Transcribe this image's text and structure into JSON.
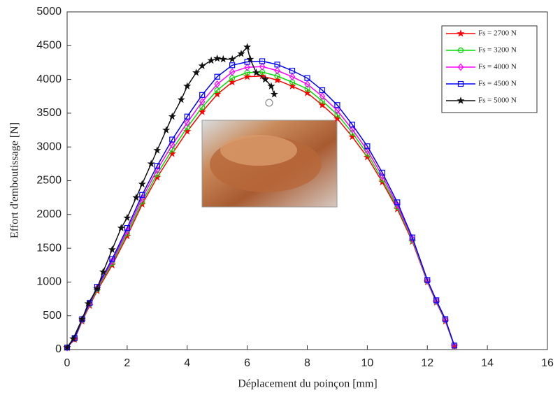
{
  "chart_data": {
    "type": "line",
    "xlabel": "Déplacement du poinçon [mm]",
    "ylabel": "Effort d'emboutissage [N]",
    "xlim": [
      0,
      16
    ],
    "xticks": [
      0,
      2,
      4,
      6,
      8,
      10,
      12,
      14,
      16
    ],
    "ylim": [
      0,
      5000
    ],
    "yticks": [
      0,
      500,
      1000,
      1500,
      2000,
      2500,
      3000,
      3500,
      4000,
      4500,
      5000
    ],
    "legend": "upper right",
    "series": [
      {
        "name": "Fs = 2700 N",
        "color": "#ff0000",
        "marker": "star",
        "x": [
          0,
          0.25,
          0.5,
          0.75,
          1,
          1.5,
          2,
          2.5,
          3,
          3.5,
          4,
          4.5,
          5,
          5.5,
          6,
          6.5,
          7,
          7.5,
          8,
          8.5,
          9,
          9.5,
          10,
          10.5,
          11,
          11.5,
          12,
          12.3,
          12.6,
          12.9
        ],
        "values": [
          30,
          150,
          420,
          650,
          870,
          1250,
          1680,
          2150,
          2550,
          2900,
          3230,
          3520,
          3780,
          3960,
          4040,
          4050,
          3990,
          3900,
          3800,
          3620,
          3420,
          3150,
          2850,
          2480,
          2080,
          1600,
          1000,
          700,
          420,
          50
        ]
      },
      {
        "name": "Fs = 3200 N",
        "color": "#00dd00",
        "marker": "circle",
        "x": [
          0,
          0.25,
          0.5,
          0.75,
          1,
          1.5,
          2,
          2.5,
          3,
          3.5,
          4,
          4.5,
          5,
          5.5,
          6,
          6.5,
          7,
          7.5,
          8,
          8.5,
          9,
          9.5,
          10,
          10.5,
          11,
          11.5,
          12,
          12.3,
          12.6,
          12.9
        ],
        "values": [
          30,
          160,
          430,
          670,
          890,
          1280,
          1720,
          2190,
          2600,
          2960,
          3290,
          3590,
          3840,
          4020,
          4100,
          4110,
          4050,
          3960,
          3860,
          3680,
          3480,
          3210,
          2900,
          2520,
          2110,
          1620,
          1010,
          710,
          430,
          50
        ]
      },
      {
        "name": "Fs = 4000 N",
        "color": "#ff00ff",
        "marker": "diamond",
        "x": [
          0,
          0.25,
          0.5,
          0.75,
          1,
          1.5,
          2,
          2.5,
          3,
          3.5,
          4,
          4.5,
          5,
          5.5,
          6,
          6.5,
          7,
          7.5,
          8,
          8.5,
          9,
          9.5,
          10,
          10.5,
          11,
          11.5,
          12,
          12.3,
          12.6,
          12.9
        ],
        "values": [
          30,
          165,
          440,
          680,
          910,
          1310,
          1760,
          2240,
          2660,
          3030,
          3360,
          3670,
          3930,
          4110,
          4180,
          4190,
          4130,
          4040,
          3930,
          3750,
          3540,
          3260,
          2950,
          2570,
          2140,
          1640,
          1020,
          720,
          440,
          55
        ]
      },
      {
        "name": "Fs = 4500 N",
        "color": "#0000ff",
        "marker": "square",
        "x": [
          0,
          0.25,
          0.5,
          0.75,
          1,
          1.5,
          2,
          2.5,
          3,
          3.5,
          4,
          4.5,
          5,
          5.5,
          6,
          6.5,
          7,
          7.5,
          8,
          8.5,
          9,
          9.5,
          10,
          10.5,
          11,
          11.5,
          12,
          12.3,
          12.6,
          12.9
        ],
        "values": [
          30,
          170,
          450,
          690,
          930,
          1340,
          1800,
          2290,
          2720,
          3110,
          3450,
          3770,
          4040,
          4210,
          4260,
          4270,
          4220,
          4130,
          4020,
          3840,
          3620,
          3330,
          3010,
          2620,
          2180,
          1660,
          1030,
          730,
          450,
          60
        ]
      },
      {
        "name": "Fs = 5000 N",
        "color": "#111111",
        "marker": "star",
        "x": [
          0,
          0.2,
          0.5,
          0.7,
          1,
          1.2,
          1.5,
          1.8,
          2,
          2.3,
          2.5,
          2.8,
          3,
          3.3,
          3.5,
          3.8,
          4,
          4.3,
          4.5,
          4.8,
          5,
          5.2,
          5.5,
          5.8,
          6,
          6.1,
          6.3,
          6.6,
          6.8,
          6.9
        ],
        "values": [
          30,
          160,
          450,
          680,
          900,
          1150,
          1480,
          1800,
          1950,
          2250,
          2450,
          2750,
          2950,
          3250,
          3450,
          3700,
          3900,
          4100,
          4200,
          4280,
          4310,
          4300,
          4300,
          4380,
          4480,
          4300,
          4100,
          4000,
          3900,
          3780
        ]
      }
    ]
  }
}
